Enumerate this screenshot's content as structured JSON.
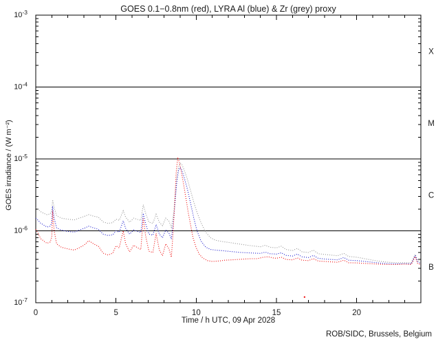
{
  "title": {
    "text": "GOES 0.1−0.8nm (red), LYRA Al (blue) & Zr (grey) proxy"
  },
  "footer": {
    "text": "ROB/SIDC, Brussels, Belgium"
  },
  "chart_data": {
    "type": "line",
    "style": "dotted",
    "title": "GOES 0.1−0.8nm (red), LYRA Al (blue) & Zr (grey) proxy",
    "xlabel": "Time / h UTC, 09 Apr 2028",
    "ylabel": "GOES irradiance / (W m⁻²)",
    "xlim": [
      0,
      24
    ],
    "x_major_ticks": [
      0,
      5,
      10,
      15,
      20
    ],
    "x_minor_step": 1,
    "y_scale": "log",
    "ylim": [
      1e-07,
      0.001
    ],
    "y_decade_exponents": [
      -3,
      -4,
      -5,
      -6,
      -7
    ],
    "hlines": [
      0.0001,
      1e-05,
      1e-06
    ],
    "grid": false,
    "legend": "encoded in title",
    "flare_classes": [
      {
        "label": "X",
        "center_value": 0.000316
      },
      {
        "label": "M",
        "center_value": 3.16e-05
      },
      {
        "label": "C",
        "center_value": 3.16e-06
      },
      {
        "label": "B",
        "center_value": 3.16e-07
      }
    ],
    "frame_color": "#000000",
    "series": [
      {
        "name": "LYRA Zr proxy",
        "color": "#909090",
        "points": [
          [
            0,
            2.1e-06
          ],
          [
            0.15,
            2e-06
          ],
          [
            0.3,
            1.85e-06
          ],
          [
            0.5,
            1.75e-06
          ],
          [
            0.7,
            1.68e-06
          ],
          [
            0.9,
            1.72e-06
          ],
          [
            1.0,
            1.9e-06
          ],
          [
            1.05,
            2.7e-06
          ],
          [
            1.15,
            2.1e-06
          ],
          [
            1.3,
            1.62e-06
          ],
          [
            1.6,
            1.5e-06
          ],
          [
            2.0,
            1.45e-06
          ],
          [
            2.4,
            1.42e-06
          ],
          [
            2.7,
            1.5e-06
          ],
          [
            3.0,
            1.58e-06
          ],
          [
            3.3,
            1.68e-06
          ],
          [
            3.6,
            1.6e-06
          ],
          [
            3.9,
            1.55e-06
          ],
          [
            4.2,
            1.33e-06
          ],
          [
            4.5,
            1.27e-06
          ],
          [
            4.8,
            1.3e-06
          ],
          [
            5.0,
            1.45e-06
          ],
          [
            5.2,
            1.4e-06
          ],
          [
            5.45,
            1.9e-06
          ],
          [
            5.6,
            1.55e-06
          ],
          [
            5.85,
            1.32e-06
          ],
          [
            6.1,
            1.5e-06
          ],
          [
            6.35,
            1.44e-06
          ],
          [
            6.55,
            1.4e-06
          ],
          [
            6.7,
            2.3e-06
          ],
          [
            6.85,
            1.75e-06
          ],
          [
            7.05,
            1.32e-06
          ],
          [
            7.3,
            1.27e-06
          ],
          [
            7.5,
            1.7e-06
          ],
          [
            7.7,
            1.32e-06
          ],
          [
            7.9,
            1.18e-06
          ],
          [
            8.1,
            1.5e-06
          ],
          [
            8.3,
            1.36e-06
          ],
          [
            8.45,
            1.12e-06
          ],
          [
            8.6,
            1.8e-06
          ],
          [
            8.7,
            3.2e-06
          ],
          [
            8.8,
            5.5e-06
          ],
          [
            8.9,
            7.8e-06
          ],
          [
            9.0,
            8.8e-06
          ],
          [
            9.1,
            8.4e-06
          ],
          [
            9.25,
            7e-06
          ],
          [
            9.45,
            5.2e-06
          ],
          [
            9.65,
            3.6e-06
          ],
          [
            9.85,
            2.5e-06
          ],
          [
            10.05,
            1.8e-06
          ],
          [
            10.3,
            1.3e-06
          ],
          [
            10.6,
            9.5e-07
          ],
          [
            10.9,
            8e-07
          ],
          [
            11.2,
            7.4e-07
          ],
          [
            11.6,
            7.1e-07
          ],
          [
            12.0,
            6.9e-07
          ],
          [
            12.4,
            6.7e-07
          ],
          [
            12.8,
            6.5e-07
          ],
          [
            13.2,
            6.3e-07
          ],
          [
            13.6,
            6.15e-07
          ],
          [
            14.0,
            6e-07
          ],
          [
            14.3,
            6.3e-07
          ],
          [
            14.6,
            5.9e-07
          ],
          [
            15.0,
            5.8e-07
          ],
          [
            15.3,
            6.1e-07
          ],
          [
            15.6,
            5.5e-07
          ],
          [
            16.0,
            5.3e-07
          ],
          [
            16.3,
            5.7e-07
          ],
          [
            16.6,
            5.1e-07
          ],
          [
            17.0,
            5e-07
          ],
          [
            17.3,
            5.4e-07
          ],
          [
            17.6,
            4.8e-07
          ],
          [
            18.0,
            4.7e-07
          ],
          [
            18.4,
            4.6e-07
          ],
          [
            18.8,
            4.5e-07
          ],
          [
            19.2,
            4.85e-07
          ],
          [
            19.5,
            4.4e-07
          ],
          [
            20.0,
            4.3e-07
          ],
          [
            20.5,
            4.1e-07
          ],
          [
            21.0,
            3.9e-07
          ],
          [
            21.5,
            3.75e-07
          ],
          [
            22.0,
            3.65e-07
          ],
          [
            22.5,
            3.6e-07
          ],
          [
            23.0,
            3.6e-07
          ],
          [
            23.4,
            3.6e-07
          ],
          [
            23.65,
            4.7e-07
          ],
          [
            23.8,
            3.9e-07
          ],
          [
            24,
            3.6e-07
          ]
        ]
      },
      {
        "name": "LYRA Al proxy",
        "color": "#1111cc",
        "points": [
          [
            0,
            1.5e-06
          ],
          [
            0.15,
            1.4e-06
          ],
          [
            0.3,
            1.28e-06
          ],
          [
            0.5,
            1.2e-06
          ],
          [
            0.7,
            1.13e-06
          ],
          [
            0.9,
            1.16e-06
          ],
          [
            1.0,
            1.3e-06
          ],
          [
            1.05,
            2.2e-06
          ],
          [
            1.15,
            1.5e-06
          ],
          [
            1.3,
            1.1e-06
          ],
          [
            1.6,
            1.02e-06
          ],
          [
            2.0,
            9.8e-07
          ],
          [
            2.4,
            9.6e-07
          ],
          [
            2.7,
            1.02e-06
          ],
          [
            3.0,
            1.08e-06
          ],
          [
            3.3,
            1.16e-06
          ],
          [
            3.6,
            1.1e-06
          ],
          [
            3.9,
            1.05e-06
          ],
          [
            4.2,
            9e-07
          ],
          [
            4.5,
            8.6e-07
          ],
          [
            4.8,
            8.8e-07
          ],
          [
            5.0,
            1e-06
          ],
          [
            5.2,
            9.6e-07
          ],
          [
            5.45,
            1.38e-06
          ],
          [
            5.6,
            1.08e-06
          ],
          [
            5.85,
            9e-07
          ],
          [
            6.1,
            1.03e-06
          ],
          [
            6.35,
            9.8e-07
          ],
          [
            6.55,
            9.5e-07
          ],
          [
            6.7,
            1.75e-06
          ],
          [
            6.85,
            1.25e-06
          ],
          [
            7.05,
            9e-07
          ],
          [
            7.3,
            8.7e-07
          ],
          [
            7.5,
            1.22e-06
          ],
          [
            7.7,
            9e-07
          ],
          [
            7.9,
            8e-07
          ],
          [
            8.1,
            1.03e-06
          ],
          [
            8.3,
            9.3e-07
          ],
          [
            8.45,
            7.7e-07
          ],
          [
            8.6,
            1.5e-06
          ],
          [
            8.7,
            2.8e-06
          ],
          [
            8.8,
            5e-06
          ],
          [
            8.9,
            7e-06
          ],
          [
            9.0,
            7.6e-06
          ],
          [
            9.1,
            7e-06
          ],
          [
            9.25,
            5.5e-06
          ],
          [
            9.45,
            3.8e-06
          ],
          [
            9.65,
            2.4e-06
          ],
          [
            9.85,
            1.5e-06
          ],
          [
            10.05,
            1e-06
          ],
          [
            10.3,
            7.2e-07
          ],
          [
            10.6,
            5.9e-07
          ],
          [
            10.9,
            5.5e-07
          ],
          [
            11.2,
            5.4e-07
          ],
          [
            11.6,
            5.3e-07
          ],
          [
            12.0,
            5.2e-07
          ],
          [
            12.4,
            5.1e-07
          ],
          [
            12.8,
            5e-07
          ],
          [
            13.2,
            4.95e-07
          ],
          [
            13.6,
            4.9e-07
          ],
          [
            14.0,
            4.85e-07
          ],
          [
            14.3,
            5.05e-07
          ],
          [
            14.6,
            4.8e-07
          ],
          [
            15.0,
            4.75e-07
          ],
          [
            15.3,
            4.95e-07
          ],
          [
            15.6,
            4.55e-07
          ],
          [
            16.0,
            4.45e-07
          ],
          [
            16.3,
            4.75e-07
          ],
          [
            16.6,
            4.35e-07
          ],
          [
            17.0,
            4.25e-07
          ],
          [
            17.3,
            4.55e-07
          ],
          [
            17.6,
            4.15e-07
          ],
          [
            18.0,
            4.05e-07
          ],
          [
            18.4,
            4e-07
          ],
          [
            18.8,
            3.95e-07
          ],
          [
            19.2,
            4.25e-07
          ],
          [
            19.5,
            3.9e-07
          ],
          [
            20.0,
            3.85e-07
          ],
          [
            20.5,
            3.75e-07
          ],
          [
            21.0,
            3.65e-07
          ],
          [
            21.5,
            3.55e-07
          ],
          [
            22.0,
            3.5e-07
          ],
          [
            22.5,
            3.48e-07
          ],
          [
            23.0,
            3.5e-07
          ],
          [
            23.4,
            3.47e-07
          ],
          [
            23.65,
            4.55e-07
          ],
          [
            23.8,
            3.7e-07
          ],
          [
            24,
            3.5e-07
          ]
        ]
      },
      {
        "name": "GOES 0.1-0.8nm",
        "color": "#ee0000",
        "points": [
          [
            0,
            1.05e-06
          ],
          [
            0.15,
            9.2e-07
          ],
          [
            0.3,
            7.8e-07
          ],
          [
            0.5,
            7.2e-07
          ],
          [
            0.7,
            6.7e-07
          ],
          [
            0.9,
            7e-07
          ],
          [
            1.0,
            8.2e-07
          ],
          [
            1.05,
            1.9e-06
          ],
          [
            1.15,
            1e-06
          ],
          [
            1.3,
            6.6e-07
          ],
          [
            1.6,
            5.9e-07
          ],
          [
            2.0,
            5.6e-07
          ],
          [
            2.4,
            5.4e-07
          ],
          [
            2.7,
            5.8e-07
          ],
          [
            3.0,
            6.3e-07
          ],
          [
            3.3,
            7.3e-07
          ],
          [
            3.6,
            6.6e-07
          ],
          [
            3.9,
            6.1e-07
          ],
          [
            4.2,
            4.9e-07
          ],
          [
            4.5,
            4.6e-07
          ],
          [
            4.8,
            4.9e-07
          ],
          [
            5.0,
            6.2e-07
          ],
          [
            5.2,
            5.8e-07
          ],
          [
            5.45,
            1e-06
          ],
          [
            5.6,
            6.6e-07
          ],
          [
            5.85,
            5.1e-07
          ],
          [
            6.1,
            6.3e-07
          ],
          [
            6.35,
            5.8e-07
          ],
          [
            6.55,
            5.5e-07
          ],
          [
            6.7,
            1.5e-06
          ],
          [
            6.85,
            8.5e-07
          ],
          [
            7.05,
            5.2e-07
          ],
          [
            7.3,
            5e-07
          ],
          [
            7.5,
            9.2e-07
          ],
          [
            7.7,
            5.4e-07
          ],
          [
            7.9,
            4.5e-07
          ],
          [
            8.1,
            6.6e-07
          ],
          [
            8.3,
            5.6e-07
          ],
          [
            8.45,
            4.3e-07
          ],
          [
            8.55,
            9e-07
          ],
          [
            8.65,
            2.2e-06
          ],
          [
            8.75,
            6.5e-06
          ],
          [
            8.85,
            1.05e-05
          ],
          [
            8.95,
            9e-06
          ],
          [
            9.05,
            7e-06
          ],
          [
            9.2,
            4.6e-06
          ],
          [
            9.35,
            2.9e-06
          ],
          [
            9.5,
            1.8e-06
          ],
          [
            9.65,
            1.2e-06
          ],
          [
            9.8,
            8e-07
          ],
          [
            10.0,
            5.8e-07
          ],
          [
            10.2,
            4.7e-07
          ],
          [
            10.4,
            4.2e-07
          ],
          [
            10.7,
            3.85e-07
          ],
          [
            11.0,
            3.75e-07
          ],
          [
            11.4,
            3.8e-07
          ],
          [
            11.8,
            3.9e-07
          ],
          [
            12.2,
            3.95e-07
          ],
          [
            12.6,
            4e-07
          ],
          [
            13.0,
            4.05e-07
          ],
          [
            13.4,
            4.1e-07
          ],
          [
            13.8,
            4.1e-07
          ],
          [
            14.2,
            4.3e-07
          ],
          [
            14.5,
            4.35e-07
          ],
          [
            14.8,
            4.2e-07
          ],
          [
            15.0,
            4.15e-07
          ],
          [
            15.3,
            4.3e-07
          ],
          [
            15.6,
            4e-07
          ],
          [
            16.0,
            3.95e-07
          ],
          [
            16.3,
            4.2e-07
          ],
          [
            16.6,
            3.9e-07
          ],
          [
            17.0,
            3.85e-07
          ],
          [
            17.3,
            4.1e-07
          ],
          [
            17.6,
            3.8e-07
          ],
          [
            18.0,
            3.75e-07
          ],
          [
            18.4,
            3.7e-07
          ],
          [
            18.8,
            3.65e-07
          ],
          [
            19.2,
            3.9e-07
          ],
          [
            19.5,
            3.6e-07
          ],
          [
            20.0,
            3.58e-07
          ],
          [
            20.5,
            3.52e-07
          ],
          [
            21.0,
            3.48e-07
          ],
          [
            21.5,
            3.42e-07
          ],
          [
            22.0,
            3.4e-07
          ],
          [
            22.5,
            3.4e-07
          ],
          [
            23.0,
            3.44e-07
          ],
          [
            23.4,
            3.4e-07
          ],
          [
            23.65,
            4.4e-07
          ],
          [
            23.8,
            3.5e-07
          ],
          [
            24,
            3.4e-07
          ]
        ]
      }
    ],
    "outlier_points": [
      {
        "color": "#ee0000",
        "t": 16.75,
        "v": 1.2e-07
      }
    ]
  }
}
